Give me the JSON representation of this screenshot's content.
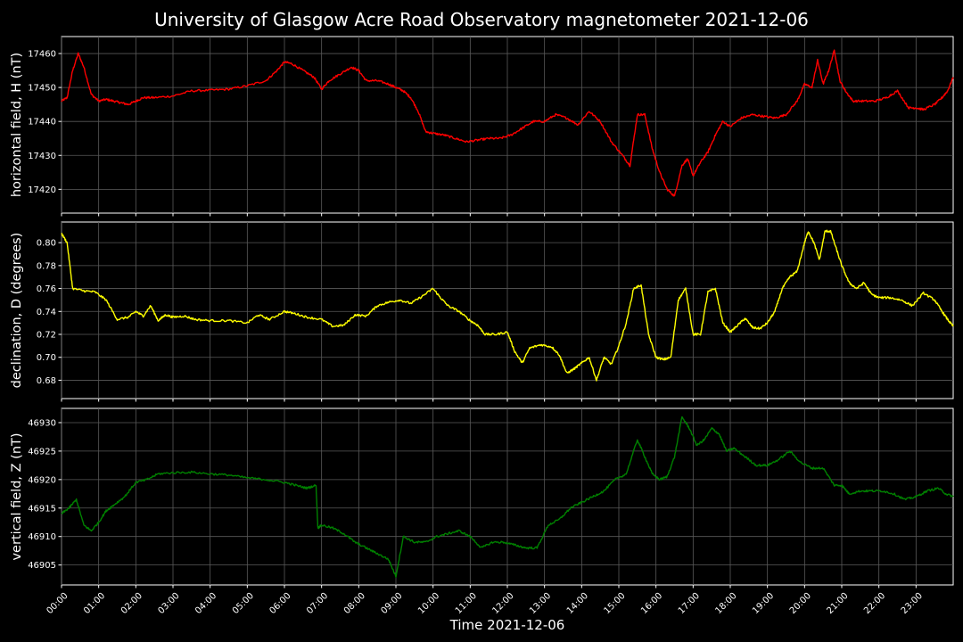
{
  "chart_data": {
    "type": "line",
    "title": "University of Glasgow Acre Road Observatory magnetometer 2021-12-06",
    "xlabel": "Time 2021-12-06",
    "xlim": [
      0,
      24
    ],
    "x_tick_labels": [
      "00:00",
      "01:00",
      "02:00",
      "03:00",
      "04:00",
      "05:00",
      "06:00",
      "07:00",
      "08:00",
      "09:00",
      "10:00",
      "11:00",
      "12:00",
      "13:00",
      "14:00",
      "15:00",
      "16:00",
      "17:00",
      "18:00",
      "19:00",
      "20:00",
      "21:00",
      "22:00",
      "23:00"
    ],
    "grid": true,
    "panels": [
      {
        "name": "H",
        "ylabel": "horizontal field, H (nT)",
        "ylim": [
          17413,
          17465
        ],
        "yticks": [
          17420,
          17430,
          17440,
          17450,
          17460
        ],
        "color": "#ff0000",
        "series": {
          "x": [
            0,
            0.15,
            0.3,
            0.45,
            0.6,
            0.8,
            1.0,
            1.2,
            1.4,
            1.6,
            1.8,
            2.0,
            2.2,
            2.5,
            3.0,
            3.5,
            4.0,
            4.5,
            5.0,
            5.5,
            5.8,
            6.0,
            6.2,
            6.5,
            6.8,
            7.0,
            7.2,
            7.5,
            7.8,
            8.0,
            8.2,
            8.5,
            8.8,
            9.0,
            9.2,
            9.4,
            9.6,
            9.8,
            10.0,
            10.3,
            10.6,
            10.9,
            11.2,
            11.5,
            11.8,
            12.1,
            12.4,
            12.7,
            13.0,
            13.3,
            13.6,
            13.9,
            14.2,
            14.5,
            14.8,
            15.1,
            15.3,
            15.5,
            15.7,
            15.9,
            16.1,
            16.3,
            16.5,
            16.7,
            16.85,
            17.0,
            17.2,
            17.4,
            17.6,
            17.8,
            18.0,
            18.3,
            18.6,
            18.9,
            19.2,
            19.5,
            19.8,
            20.0,
            20.2,
            20.35,
            20.5,
            20.65,
            20.8,
            20.95,
            21.1,
            21.3,
            21.6,
            21.9,
            22.2,
            22.5,
            22.8,
            23.0,
            23.2,
            23.5,
            23.7,
            23.85,
            24.0
          ],
          "y": [
            17446,
            17447,
            17455,
            17460,
            17456,
            17448,
            17446,
            17446.5,
            17446,
            17445.5,
            17445,
            17446,
            17447,
            17447,
            17447.5,
            17449,
            17449.2,
            17449.5,
            17450.5,
            17452,
            17455,
            17457.5,
            17457,
            17455,
            17453,
            17449.5,
            17452,
            17454,
            17456,
            17455,
            17452,
            17452,
            17451,
            17450,
            17449,
            17447,
            17443,
            17437,
            17436.5,
            17436,
            17435,
            17434,
            17434.5,
            17435,
            17435,
            17436,
            17438,
            17440,
            17440,
            17442,
            17441,
            17439,
            17443,
            17440,
            17434,
            17430,
            17427,
            17442,
            17442,
            17432,
            17425,
            17420,
            17418,
            17427,
            17429,
            17424,
            17428,
            17431,
            17436,
            17440,
            17438.5,
            17441,
            17442,
            17441.5,
            17441,
            17442,
            17446,
            17451,
            17450,
            17458,
            17451,
            17455,
            17461,
            17452,
            17449,
            17446,
            17446,
            17446,
            17447,
            17449,
            17444,
            17444,
            17443.5,
            17445,
            17447,
            17449,
            17453
          ]
        }
      },
      {
        "name": "D",
        "ylabel": "declination, D (degrees)",
        "ylim": [
          0.664,
          0.818
        ],
        "yticks": [
          0.68,
          0.7,
          0.72,
          0.74,
          0.76,
          0.78,
          0.8
        ],
        "color": "#ffff00",
        "series": {
          "x": [
            0,
            0.15,
            0.3,
            0.6,
            0.9,
            1.2,
            1.5,
            1.8,
            2.0,
            2.2,
            2.4,
            2.6,
            2.8,
            3.0,
            3.3,
            3.6,
            4.0,
            4.5,
            5.0,
            5.3,
            5.6,
            6.0,
            6.3,
            6.6,
            7.0,
            7.3,
            7.6,
            7.9,
            8.2,
            8.5,
            8.8,
            9.1,
            9.4,
            9.7,
            10.0,
            10.2,
            10.4,
            10.7,
            11.0,
            11.2,
            11.4,
            11.7,
            12.0,
            12.2,
            12.4,
            12.6,
            12.9,
            13.2,
            13.4,
            13.6,
            13.8,
            14.0,
            14.2,
            14.4,
            14.6,
            14.8,
            15.0,
            15.2,
            15.4,
            15.6,
            15.8,
            16.0,
            16.2,
            16.4,
            16.6,
            16.8,
            17.0,
            17.2,
            17.4,
            17.6,
            17.8,
            18.0,
            18.2,
            18.4,
            18.6,
            18.8,
            19.0,
            19.2,
            19.4,
            19.6,
            19.8,
            20.0,
            20.1,
            20.25,
            20.4,
            20.55,
            20.7,
            20.85,
            21.0,
            21.2,
            21.4,
            21.6,
            21.8,
            22.0,
            22.3,
            22.6,
            22.9,
            23.2,
            23.5,
            23.7,
            23.85,
            24.0
          ],
          "y": [
            0.808,
            0.8,
            0.76,
            0.758,
            0.757,
            0.75,
            0.733,
            0.735,
            0.74,
            0.736,
            0.745,
            0.732,
            0.737,
            0.735,
            0.736,
            0.733,
            0.732,
            0.732,
            0.73,
            0.737,
            0.733,
            0.74,
            0.738,
            0.735,
            0.733,
            0.727,
            0.728,
            0.737,
            0.736,
            0.745,
            0.748,
            0.75,
            0.747,
            0.753,
            0.76,
            0.752,
            0.745,
            0.74,
            0.732,
            0.728,
            0.72,
            0.72,
            0.722,
            0.705,
            0.695,
            0.708,
            0.711,
            0.709,
            0.702,
            0.686,
            0.69,
            0.695,
            0.7,
            0.68,
            0.7,
            0.694,
            0.71,
            0.73,
            0.76,
            0.763,
            0.72,
            0.7,
            0.698,
            0.7,
            0.75,
            0.76,
            0.72,
            0.72,
            0.757,
            0.76,
            0.73,
            0.722,
            0.728,
            0.734,
            0.726,
            0.725,
            0.73,
            0.74,
            0.76,
            0.77,
            0.775,
            0.8,
            0.81,
            0.8,
            0.785,
            0.81,
            0.81,
            0.795,
            0.78,
            0.765,
            0.76,
            0.765,
            0.755,
            0.752,
            0.752,
            0.75,
            0.745,
            0.756,
            0.75,
            0.74,
            0.733,
            0.727
          ]
        }
      },
      {
        "name": "Z",
        "ylabel": "vertical field, Z (nT)",
        "ylim": [
          46901.5,
          46932.5
        ],
        "yticks": [
          46905,
          46910,
          46915,
          46920,
          46925,
          46930
        ],
        "color": "#008000",
        "series": {
          "x": [
            0,
            0.2,
            0.4,
            0.6,
            0.8,
            1.0,
            1.2,
            1.4,
            1.7,
            2.0,
            2.3,
            2.6,
            3.0,
            3.5,
            4.0,
            4.5,
            5.0,
            5.5,
            6.0,
            6.3,
            6.6,
            6.85,
            6.9,
            7.0,
            7.3,
            7.6,
            7.9,
            8.2,
            8.5,
            8.8,
            9.0,
            9.2,
            9.5,
            9.8,
            10.1,
            10.4,
            10.7,
            11.0,
            11.3,
            11.6,
            11.9,
            12.2,
            12.5,
            12.8,
            13.1,
            13.4,
            13.7,
            14.0,
            14.3,
            14.6,
            14.9,
            15.2,
            15.5,
            15.7,
            15.9,
            16.1,
            16.3,
            16.5,
            16.7,
            16.9,
            17.1,
            17.3,
            17.5,
            17.7,
            17.9,
            18.1,
            18.4,
            18.7,
            19.0,
            19.3,
            19.6,
            19.9,
            20.2,
            20.5,
            20.8,
            21.0,
            21.2,
            21.5,
            21.8,
            22.1,
            22.4,
            22.7,
            23.0,
            23.3,
            23.6,
            23.8,
            24.0
          ],
          "y": [
            46914,
            46915,
            46916.5,
            46912,
            46911,
            46912.5,
            46914.5,
            46915.5,
            46917,
            46919.5,
            46920,
            46921,
            46921.2,
            46921.3,
            46921,
            46920.8,
            46920.3,
            46920,
            46919.5,
            46919,
            46918.5,
            46919,
            46911.5,
            46912,
            46911.5,
            46910.5,
            46909,
            46908,
            46907,
            46906,
            46903,
            46910,
            46909,
            46909,
            46910,
            46910.5,
            46911,
            46910,
            46908,
            46909,
            46909,
            46908.5,
            46908,
            46908,
            46912,
            46913,
            46915,
            46916,
            46917,
            46918,
            46920,
            46921,
            46927,
            46924,
            46921,
            46920,
            46920.5,
            46924,
            46931,
            46929,
            46926,
            46927,
            46929,
            46928,
            46925,
            46925.5,
            46924,
            46922.5,
            46922.5,
            46923.5,
            46925,
            46923,
            46922,
            46922,
            46919,
            46919,
            46917.5,
            46918,
            46918,
            46918,
            46917.5,
            46916.5,
            46917,
            46918,
            46918.5,
            46917.5,
            46917
          ]
        }
      }
    ]
  }
}
